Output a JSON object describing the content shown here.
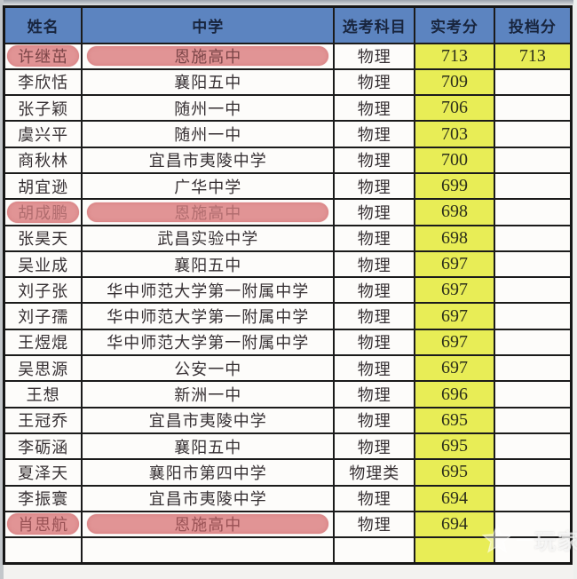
{
  "table": {
    "columns": [
      "姓名",
      "中学",
      "选考科目",
      "实考分",
      "投档分"
    ],
    "rows": [
      {
        "name": "许继茁",
        "school": "恩施高中",
        "subject": "物理",
        "score": "713",
        "admission": "713",
        "admission_filled": true,
        "highlight": true,
        "highlight_text_color": "#7c4447"
      },
      {
        "name": "李欣恬",
        "school": "襄阳五中",
        "subject": "物理",
        "score": "709",
        "admission": ""
      },
      {
        "name": "张子颖",
        "school": "随州一中",
        "subject": "物理",
        "score": "706",
        "admission": ""
      },
      {
        "name": "虞兴平",
        "school": "随州一中",
        "subject": "物理",
        "score": "703",
        "admission": ""
      },
      {
        "name": "商秋林",
        "school": "宜昌市夷陵中学",
        "subject": "物理",
        "score": "700",
        "admission": ""
      },
      {
        "name": "胡宜逊",
        "school": "广华中学",
        "subject": "物理",
        "score": "699",
        "admission": ""
      },
      {
        "name": "胡成鹏",
        "school": "恩施高中",
        "subject": "物理",
        "score": "698",
        "admission": "",
        "highlight": true,
        "highlight_text_color": "#b26b6e"
      },
      {
        "name": "张昊天",
        "school": "武昌实验中学",
        "subject": "物理",
        "score": "698",
        "admission": ""
      },
      {
        "name": "吴业成",
        "school": "襄阳五中",
        "subject": "物理",
        "score": "697",
        "admission": ""
      },
      {
        "name": "刘子张",
        "school": "华中师范大学第一附属中学",
        "subject": "物理",
        "score": "697",
        "admission": ""
      },
      {
        "name": "刘子孺",
        "school": "华中师范大学第一附属中学",
        "subject": "物理",
        "score": "697",
        "admission": ""
      },
      {
        "name": "王煜焜",
        "school": "华中师范大学第一附属中学",
        "subject": "物理",
        "score": "697",
        "admission": ""
      },
      {
        "name": "吴思源",
        "school": "公安一中",
        "subject": "物理",
        "score": "697",
        "admission": ""
      },
      {
        "name": "王想",
        "school": "新洲一中",
        "subject": "物理",
        "score": "696",
        "admission": ""
      },
      {
        "name": "王冠乔",
        "school": "宜昌市夷陵中学",
        "subject": "物理",
        "score": "695",
        "admission": ""
      },
      {
        "name": "李砺涵",
        "school": "襄阳五中",
        "subject": "物理",
        "score": "695",
        "admission": ""
      },
      {
        "name": "夏泽天",
        "school": "襄阳市第四中学",
        "subject": "物理类",
        "score": "695",
        "admission": ""
      },
      {
        "name": "李振寰",
        "school": "宜昌市夷陵中学",
        "subject": "物理",
        "score": "694",
        "admission": ""
      },
      {
        "name": "肖思航",
        "school": "恩施高中",
        "subject": "物理",
        "score": "694",
        "admission": "",
        "highlight": true,
        "highlight_text_color": "#9a5054"
      }
    ],
    "bottom_partial_row": true
  },
  "watermark": {
    "icon": "star-icon",
    "text": "玩家"
  },
  "palette": {
    "header_bg": "#5b84c3",
    "header_text": "#18253f",
    "score_bg": "#e8ee50",
    "highlight_pink": "#e49394",
    "cell_bg": "#fdfcfa",
    "border": "#1b1b1b",
    "body_text": "#363033",
    "score_text": "#2c2e1a"
  }
}
